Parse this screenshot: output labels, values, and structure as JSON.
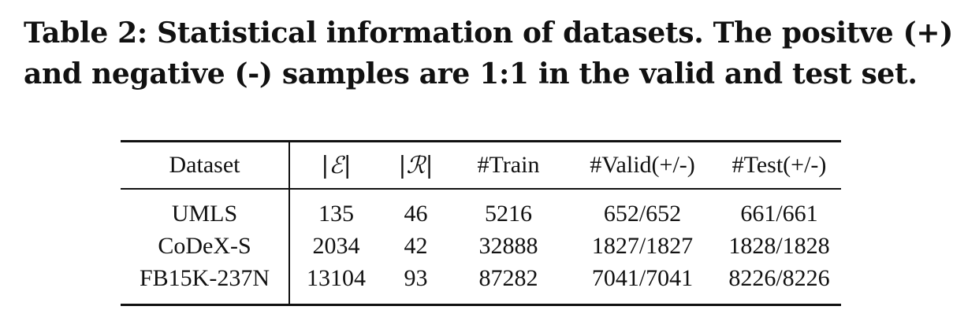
{
  "caption": {
    "line1": "Table 2: Statistical information of datasets. The positve (+)",
    "line2": "and negative (-) samples are 1:1 in the valid and test set."
  },
  "table": {
    "headers": [
      "Dataset",
      "|ℰ|",
      "|ℛ|",
      "#Train",
      "#Valid(+/-)",
      "#Test(+/-)"
    ],
    "rows": [
      [
        "UMLS",
        "135",
        "46",
        "5216",
        "652/652",
        "661/661"
      ],
      [
        "CoDeX-S",
        "2034",
        "42",
        "32888",
        "1827/1827",
        "1828/1828"
      ],
      [
        "FB15K-237N",
        "13104",
        "93",
        "87282",
        "7041/7041",
        "8226/8226"
      ]
    ]
  }
}
